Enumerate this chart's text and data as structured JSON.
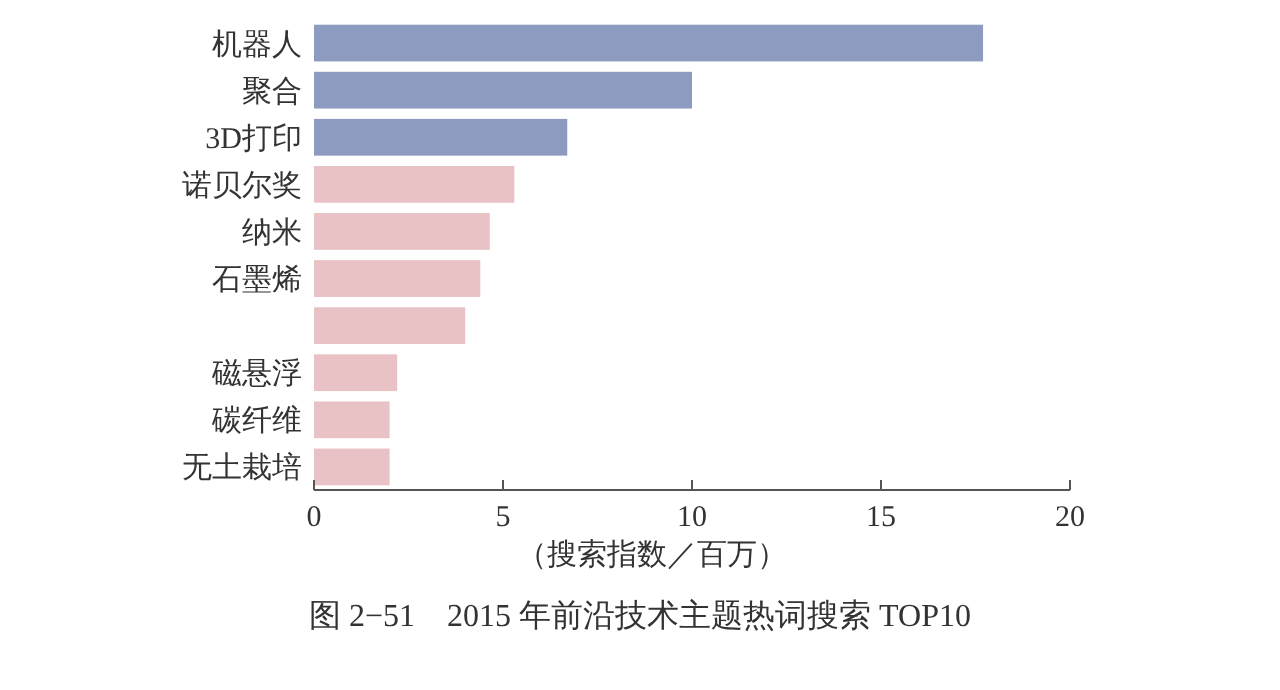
{
  "chart_data": {
    "type": "bar",
    "orientation": "horizontal",
    "title": "图 2−51　2015 年前沿技术主题热词搜索 TOP10",
    "xlabel": "（搜索指数／百万）",
    "categories": [
      "机器人",
      "聚合",
      "3D打印",
      "诺贝尔奖",
      "纳米",
      "石墨烯",
      null,
      "磁悬浮",
      "碳纤维",
      "无土栽培"
    ],
    "values": [
      17.7,
      10.0,
      6.7,
      5.3,
      4.65,
      4.4,
      4.0,
      2.2,
      2.0,
      2.0
    ],
    "colors": [
      "#8d9bc0",
      "#8d9bc0",
      "#8d9bc0",
      "#e8c2c5",
      "#e8c2c5",
      "#e8c2c5",
      "#e8c2c5",
      "#e8c2c5",
      "#e8c2c5",
      "#e8c2c5"
    ],
    "xlim": [
      0,
      20
    ],
    "xticks": [
      0,
      5,
      10,
      15,
      20
    ],
    "grid": false
  }
}
